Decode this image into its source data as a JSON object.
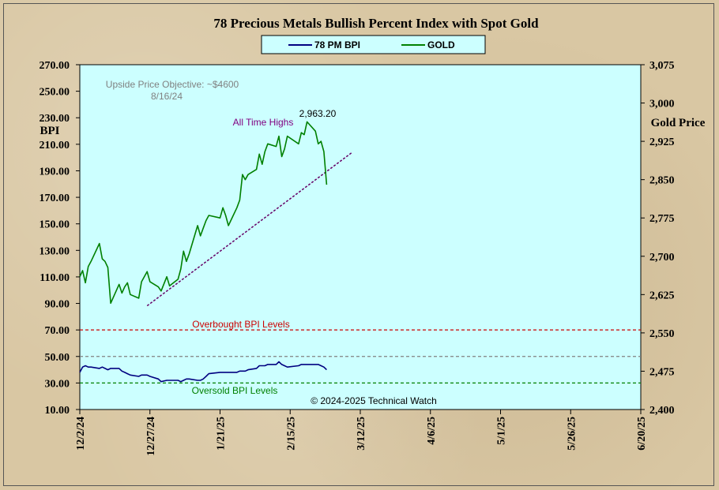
{
  "chart_data": {
    "type": "line",
    "title": "78 Precious Metals Bullish  Percent Index with Spot Gold",
    "legend": {
      "placement": "top-center",
      "entries": [
        {
          "label": "78 PM BPI",
          "color": "#000080"
        },
        {
          "label": "GOLD",
          "color": "#008000"
        }
      ]
    },
    "x_axis": {
      "type": "date",
      "range": [
        "2024-12-02",
        "2025-06-20"
      ],
      "tick_labels": [
        "12/2/24",
        "12/27/24",
        "1/21/25",
        "2/15/25",
        "3/12/25",
        "4/6/25",
        "5/1/25",
        "5/26/25",
        "6/20/25"
      ],
      "tick_dates": [
        "2024-12-02",
        "2024-12-27",
        "2025-01-21",
        "2025-02-15",
        "2025-03-12",
        "2025-04-06",
        "2025-05-01",
        "2025-05-26",
        "2025-06-20"
      ]
    },
    "y_left": {
      "label": "BPI",
      "range": [
        10,
        270
      ],
      "tick_labels": [
        "270.00",
        "250.00",
        "230.00",
        "210.00",
        "190.00",
        "170.00",
        "150.00",
        "130.00",
        "110.00",
        "90.00",
        "70.00",
        "50.00",
        "30.00",
        "10.00"
      ]
    },
    "y_right": {
      "label": "Gold Price",
      "range": [
        2400,
        3075
      ],
      "tick_labels": [
        "3,075",
        "3,000",
        "2,925",
        "2,850",
        "2,775",
        "2,700",
        "2,625",
        "2,550",
        "2,475",
        "2,400"
      ]
    },
    "series": [
      {
        "name": "78 PM BPI",
        "axis": "left",
        "color": "#000080",
        "x": [
          "2024-12-02",
          "2024-12-03",
          "2024-12-04",
          "2024-12-05",
          "2024-12-06",
          "2024-12-09",
          "2024-12-10",
          "2024-12-11",
          "2024-12-12",
          "2024-12-13",
          "2024-12-16",
          "2024-12-17",
          "2024-12-18",
          "2024-12-19",
          "2024-12-20",
          "2024-12-23",
          "2024-12-24",
          "2024-12-26",
          "2024-12-27",
          "2024-12-30",
          "2024-12-31",
          "2025-01-02",
          "2025-01-03",
          "2025-01-06",
          "2025-01-07",
          "2025-01-08",
          "2025-01-09",
          "2025-01-10",
          "2025-01-13",
          "2025-01-14",
          "2025-01-15",
          "2025-01-16",
          "2025-01-17",
          "2025-01-21",
          "2025-01-22",
          "2025-01-23",
          "2025-01-24",
          "2025-01-27",
          "2025-01-28",
          "2025-01-29",
          "2025-01-30",
          "2025-01-31",
          "2025-02-03",
          "2025-02-04",
          "2025-02-05",
          "2025-02-06",
          "2025-02-07",
          "2025-02-10",
          "2025-02-11",
          "2025-02-12",
          "2025-02-13",
          "2025-02-14",
          "2025-02-18",
          "2025-02-19",
          "2025-02-20",
          "2025-02-21",
          "2025-02-24",
          "2025-02-25",
          "2025-02-26",
          "2025-02-27",
          "2025-02-28"
        ],
        "values": [
          38,
          42,
          43,
          42,
          42,
          41,
          42,
          41,
          40,
          41,
          41,
          39,
          38,
          37,
          36,
          35,
          36,
          36,
          35,
          33,
          31,
          32,
          32,
          32,
          31,
          32,
          33,
          33,
          32,
          32,
          33,
          35,
          37,
          38,
          38,
          38,
          38,
          38,
          39,
          39,
          39,
          40,
          41,
          43,
          43,
          43,
          44,
          44,
          46,
          44,
          43,
          42,
          43,
          44,
          44,
          44,
          44,
          44,
          43,
          42,
          40
        ]
      },
      {
        "name": "GOLD",
        "axis": "right",
        "color": "#008000",
        "x": [
          "2024-12-02",
          "2024-12-03",
          "2024-12-04",
          "2024-12-05",
          "2024-12-06",
          "2024-12-09",
          "2024-12-10",
          "2024-12-11",
          "2024-12-12",
          "2024-12-13",
          "2024-12-16",
          "2024-12-17",
          "2024-12-18",
          "2024-12-19",
          "2024-12-20",
          "2024-12-23",
          "2024-12-24",
          "2024-12-26",
          "2024-12-27",
          "2024-12-30",
          "2024-12-31",
          "2025-01-02",
          "2025-01-03",
          "2025-01-06",
          "2025-01-07",
          "2025-01-08",
          "2025-01-09",
          "2025-01-10",
          "2025-01-13",
          "2025-01-14",
          "2025-01-15",
          "2025-01-16",
          "2025-01-17",
          "2025-01-21",
          "2025-01-22",
          "2025-01-23",
          "2025-01-24",
          "2025-01-27",
          "2025-01-28",
          "2025-01-29",
          "2025-01-30",
          "2025-01-31",
          "2025-02-03",
          "2025-02-04",
          "2025-02-05",
          "2025-02-06",
          "2025-02-07",
          "2025-02-10",
          "2025-02-11",
          "2025-02-12",
          "2025-02-13",
          "2025-02-14",
          "2025-02-18",
          "2025-02-19",
          "2025-02-20",
          "2025-02-21",
          "2025-02-24",
          "2025-02-25",
          "2025-02-26",
          "2025-02-27",
          "2025-02-28"
        ],
        "values": [
          2660,
          2672,
          2648,
          2680,
          2690,
          2725,
          2695,
          2690,
          2678,
          2608,
          2645,
          2628,
          2640,
          2648,
          2625,
          2618,
          2650,
          2670,
          2650,
          2640,
          2632,
          2660,
          2642,
          2655,
          2675,
          2710,
          2690,
          2705,
          2760,
          2740,
          2755,
          2770,
          2780,
          2775,
          2795,
          2780,
          2760,
          2795,
          2810,
          2860,
          2850,
          2860,
          2870,
          2900,
          2880,
          2905,
          2920,
          2915,
          2935,
          2895,
          2910,
          2935,
          2920,
          2942,
          2938,
          2963.2,
          2945,
          2920,
          2925,
          2905,
          2840
        ]
      }
    ],
    "reference_lines": [
      {
        "label": "Overbought  BPI Levels",
        "axis": "left",
        "value": 70,
        "color": "#cc0000"
      },
      {
        "label": "",
        "axis": "left",
        "value": 50,
        "color": "#808080"
      },
      {
        "label": "Oversold  BPI Levels",
        "axis": "left",
        "value": 30,
        "color": "#008000"
      }
    ],
    "trendline": {
      "axis": "right",
      "color": "#660066",
      "start": {
        "x": "2024-12-26",
        "y": 2603
      },
      "end": {
        "x": "2025-03-09",
        "y": 2903
      }
    },
    "annotations": [
      {
        "text": "Upside Price Objective:  ~$4600",
        "color": "#808080"
      },
      {
        "text": "8/16/24",
        "color": "#808080"
      },
      {
        "text": "All Time  Highs",
        "color": "#800080"
      },
      {
        "text": "2,963.20",
        "color": "#000000"
      },
      {
        "text": "© 2024-2025  Technical Watch",
        "color": "#000000"
      }
    ],
    "grid": false,
    "plot_background": "#ccffff"
  }
}
